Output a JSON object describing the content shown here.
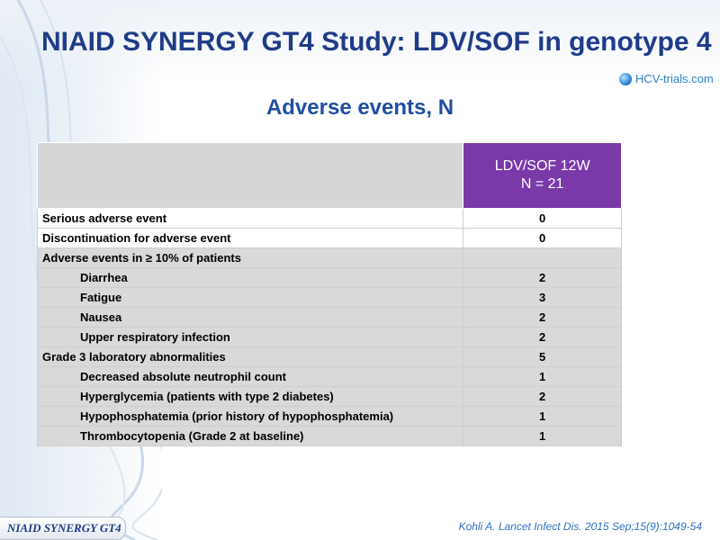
{
  "title": "NIAID SYNERGY GT4 Study: LDV/SOF in genotype 4",
  "brand": "HCV-trials.com",
  "subtitle": "Adverse events, N",
  "table": {
    "column_header_line1": "LDV/SOF 12W",
    "column_header_line2": "N = 21",
    "rows": [
      {
        "label": "Serious adverse event",
        "value": "0"
      },
      {
        "label": "Discontinuation for adverse event",
        "value": "0"
      },
      {
        "label": "Adverse events in ≥ 10% of patients",
        "value": ""
      },
      {
        "label": "Diarrhea",
        "value": "2"
      },
      {
        "label": "Fatigue",
        "value": "3"
      },
      {
        "label": "Nausea",
        "value": "2"
      },
      {
        "label": "Upper respiratory infection",
        "value": "2"
      },
      {
        "label": "Grade 3 laboratory abnormalities",
        "value": "5"
      },
      {
        "label": "Decreased absolute neutrophil count",
        "value": "1"
      },
      {
        "label": "Hyperglycemia (patients with type 2 diabetes)",
        "value": "2"
      },
      {
        "label": "Hypophosphatemia (prior history of hypophosphatemia)",
        "value": "1"
      },
      {
        "label": "Thrombocytopenia (Grade 2 at baseline)",
        "value": "1"
      }
    ]
  },
  "footer_tag": "NIAID SYNERGY GT4",
  "citation": "Kohli A. Lancet Infect Dis. 2015 Sep;15(9):1049-54",
  "colors": {
    "title": "#1f3c88",
    "header_purple": "#7a39a8",
    "row_shade": "#d9d9d9"
  }
}
